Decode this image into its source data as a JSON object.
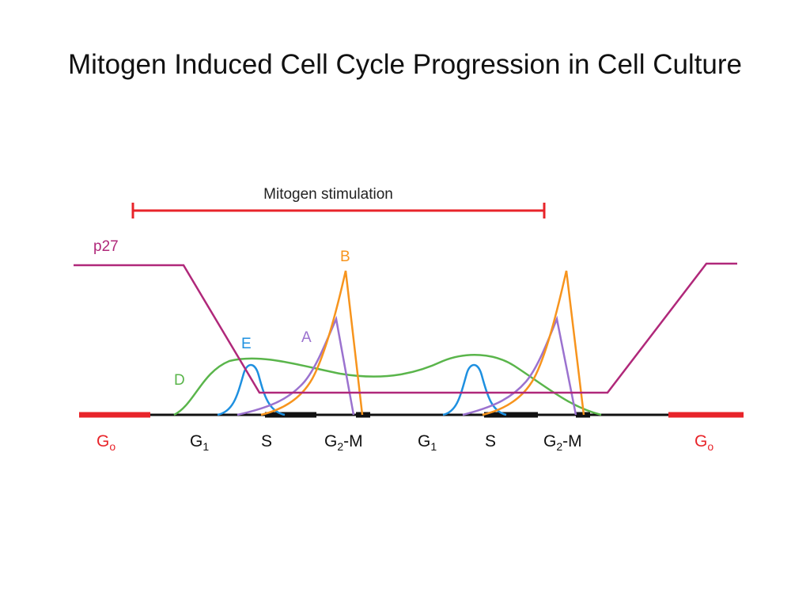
{
  "title": "Mitogen Induced Cell Cycle Progression in Cell Culture",
  "stimulation": {
    "label": "Mitogen stimulation"
  },
  "curves": {
    "p27": {
      "label": "p27",
      "color": "#b0287a"
    },
    "B": {
      "label": "B",
      "color": "#f7941d"
    },
    "A": {
      "label": "A",
      "color": "#9b72cf"
    },
    "E": {
      "label": "E",
      "color": "#1e90e0"
    },
    "D": {
      "label": "D",
      "color": "#5ab54b"
    }
  },
  "phases": {
    "g0_left": {
      "main": "G",
      "sub": "o"
    },
    "g1_a": {
      "main": "G",
      "sub": "1"
    },
    "s_a": {
      "main": "S"
    },
    "g2m_a": {
      "main": "G",
      "sub": "2",
      "suffix": "-M"
    },
    "g1_b": {
      "main": "G",
      "sub": "1"
    },
    "s_b": {
      "main": "S"
    },
    "g2m_b": {
      "main": "G",
      "sub": "2",
      "suffix": "-M"
    },
    "g0_right": {
      "main": "G",
      "sub": "o"
    }
  },
  "colors": {
    "g0": "#e8242a",
    "stimulation": "#e8242a",
    "axis": "#111111"
  }
}
